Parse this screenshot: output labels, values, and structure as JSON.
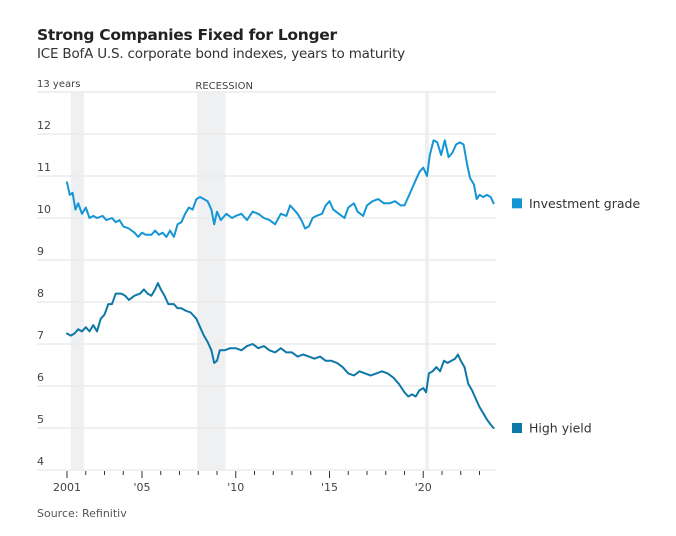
{
  "header": {
    "title": "Strong Companies Fixed for Longer",
    "subtitle": "ICE BofA U.S. corporate bond indexes, years to maturity"
  },
  "footer": {
    "source": "Source: Refinitiv"
  },
  "chart_data": {
    "type": "line",
    "title": "Strong Companies Fixed for Longer",
    "subtitle": "ICE BofA U.S. corporate bond indexes, years to maturity",
    "xlabel": "",
    "ylabel": "years",
    "xlim": [
      2001,
      2024
    ],
    "ylim": [
      4,
      13
    ],
    "yticks": [
      4,
      5,
      6,
      7,
      8,
      9,
      10,
      11,
      12,
      13
    ],
    "ytick_labels": [
      "4",
      "5",
      "6",
      "7",
      "8",
      "9",
      "10",
      "11",
      "12",
      "13 years"
    ],
    "xticks": [
      2001,
      2005,
      2010,
      2015,
      2020
    ],
    "xtick_labels": [
      "2001",
      "'05",
      "'10",
      "'15",
      "'20"
    ],
    "minor_xticks": [
      2002,
      2003,
      2004,
      2006,
      2007,
      2008,
      2009,
      2011,
      2012,
      2013,
      2014,
      2016,
      2017,
      2018,
      2019,
      2021,
      2022,
      2023
    ],
    "grid": true,
    "legend": "right",
    "annotations": [
      {
        "text": "RECESSION",
        "x": 2007.9
      }
    ],
    "recessions": [
      {
        "start": 2001.2,
        "end": 2001.9
      },
      {
        "start": 2007.95,
        "end": 2009.45
      },
      {
        "start": 2020.1,
        "end": 2020.3
      }
    ],
    "series": [
      {
        "name": "Investment grade",
        "color": "#1596d4",
        "points": [
          [
            2001.0,
            10.85
          ],
          [
            2001.15,
            10.55
          ],
          [
            2001.3,
            10.6
          ],
          [
            2001.45,
            10.2
          ],
          [
            2001.6,
            10.35
          ],
          [
            2001.8,
            10.1
          ],
          [
            2002.0,
            10.25
          ],
          [
            2002.2,
            10.0
          ],
          [
            2002.4,
            10.05
          ],
          [
            2002.6,
            10.0
          ],
          [
            2002.9,
            10.05
          ],
          [
            2003.1,
            9.95
          ],
          [
            2003.4,
            10.0
          ],
          [
            2003.6,
            9.9
          ],
          [
            2003.8,
            9.95
          ],
          [
            2004.0,
            9.8
          ],
          [
            2004.3,
            9.75
          ],
          [
            2004.6,
            9.65
          ],
          [
            2004.8,
            9.55
          ],
          [
            2005.0,
            9.65
          ],
          [
            2005.2,
            9.6
          ],
          [
            2005.5,
            9.6
          ],
          [
            2005.7,
            9.7
          ],
          [
            2005.9,
            9.6
          ],
          [
            2006.1,
            9.65
          ],
          [
            2006.3,
            9.55
          ],
          [
            2006.5,
            9.7
          ],
          [
            2006.7,
            9.55
          ],
          [
            2006.9,
            9.85
          ],
          [
            2007.1,
            9.9
          ],
          [
            2007.3,
            10.1
          ],
          [
            2007.5,
            10.25
          ],
          [
            2007.7,
            10.2
          ],
          [
            2007.9,
            10.45
          ],
          [
            2008.1,
            10.5
          ],
          [
            2008.3,
            10.45
          ],
          [
            2008.5,
            10.4
          ],
          [
            2008.7,
            10.2
          ],
          [
            2008.85,
            9.85
          ],
          [
            2009.0,
            10.15
          ],
          [
            2009.2,
            9.95
          ],
          [
            2009.5,
            10.1
          ],
          [
            2009.8,
            10.0
          ],
          [
            2010.0,
            10.05
          ],
          [
            2010.3,
            10.1
          ],
          [
            2010.6,
            9.95
          ],
          [
            2010.9,
            10.15
          ],
          [
            2011.2,
            10.1
          ],
          [
            2011.5,
            10.0
          ],
          [
            2011.8,
            9.95
          ],
          [
            2012.1,
            9.85
          ],
          [
            2012.4,
            10.1
          ],
          [
            2012.7,
            10.05
          ],
          [
            2012.9,
            10.3
          ],
          [
            2013.1,
            10.2
          ],
          [
            2013.3,
            10.1
          ],
          [
            2013.5,
            9.95
          ],
          [
            2013.7,
            9.75
          ],
          [
            2013.9,
            9.8
          ],
          [
            2014.1,
            10.0
          ],
          [
            2014.3,
            10.05
          ],
          [
            2014.6,
            10.1
          ],
          [
            2014.8,
            10.3
          ],
          [
            2015.0,
            10.4
          ],
          [
            2015.2,
            10.2
          ],
          [
            2015.5,
            10.1
          ],
          [
            2015.8,
            10.0
          ],
          [
            2016.0,
            10.25
          ],
          [
            2016.3,
            10.35
          ],
          [
            2016.5,
            10.15
          ],
          [
            2016.8,
            10.05
          ],
          [
            2017.0,
            10.3
          ],
          [
            2017.3,
            10.4
          ],
          [
            2017.6,
            10.45
          ],
          [
            2017.9,
            10.35
          ],
          [
            2018.2,
            10.35
          ],
          [
            2018.5,
            10.4
          ],
          [
            2018.8,
            10.3
          ],
          [
            2019.0,
            10.3
          ],
          [
            2019.2,
            10.5
          ],
          [
            2019.4,
            10.7
          ],
          [
            2019.6,
            10.9
          ],
          [
            2019.8,
            11.1
          ],
          [
            2020.0,
            11.2
          ],
          [
            2020.2,
            11.0
          ],
          [
            2020.35,
            11.5
          ],
          [
            2020.55,
            11.85
          ],
          [
            2020.75,
            11.8
          ],
          [
            2020.95,
            11.5
          ],
          [
            2021.15,
            11.85
          ],
          [
            2021.35,
            11.45
          ],
          [
            2021.55,
            11.55
          ],
          [
            2021.75,
            11.75
          ],
          [
            2021.95,
            11.8
          ],
          [
            2022.15,
            11.75
          ],
          [
            2022.35,
            11.25
          ],
          [
            2022.5,
            10.95
          ],
          [
            2022.7,
            10.8
          ],
          [
            2022.85,
            10.45
          ],
          [
            2023.0,
            10.55
          ],
          [
            2023.2,
            10.5
          ],
          [
            2023.4,
            10.55
          ],
          [
            2023.6,
            10.5
          ],
          [
            2023.75,
            10.35
          ]
        ]
      },
      {
        "name": "High yield",
        "color": "#0e78a8",
        "points": [
          [
            2001.0,
            7.25
          ],
          [
            2001.2,
            7.2
          ],
          [
            2001.4,
            7.25
          ],
          [
            2001.6,
            7.35
          ],
          [
            2001.8,
            7.3
          ],
          [
            2002.0,
            7.4
          ],
          [
            2002.2,
            7.3
          ],
          [
            2002.4,
            7.45
          ],
          [
            2002.6,
            7.3
          ],
          [
            2002.8,
            7.6
          ],
          [
            2003.0,
            7.7
          ],
          [
            2003.2,
            7.95
          ],
          [
            2003.4,
            7.95
          ],
          [
            2003.6,
            8.2
          ],
          [
            2003.9,
            8.2
          ],
          [
            2004.1,
            8.15
          ],
          [
            2004.3,
            8.05
          ],
          [
            2004.6,
            8.15
          ],
          [
            2004.9,
            8.2
          ],
          [
            2005.1,
            8.3
          ],
          [
            2005.3,
            8.2
          ],
          [
            2005.5,
            8.15
          ],
          [
            2005.7,
            8.3
          ],
          [
            2005.85,
            8.45
          ],
          [
            2006.0,
            8.3
          ],
          [
            2006.2,
            8.15
          ],
          [
            2006.4,
            7.95
          ],
          [
            2006.7,
            7.95
          ],
          [
            2006.9,
            7.85
          ],
          [
            2007.1,
            7.85
          ],
          [
            2007.3,
            7.8
          ],
          [
            2007.6,
            7.75
          ],
          [
            2007.9,
            7.6
          ],
          [
            2008.1,
            7.4
          ],
          [
            2008.3,
            7.2
          ],
          [
            2008.5,
            7.05
          ],
          [
            2008.7,
            6.85
          ],
          [
            2008.85,
            6.55
          ],
          [
            2009.0,
            6.6
          ],
          [
            2009.15,
            6.85
          ],
          [
            2009.4,
            6.85
          ],
          [
            2009.7,
            6.9
          ],
          [
            2010.0,
            6.9
          ],
          [
            2010.3,
            6.85
          ],
          [
            2010.6,
            6.95
          ],
          [
            2010.9,
            7.0
          ],
          [
            2011.2,
            6.9
          ],
          [
            2011.5,
            6.95
          ],
          [
            2011.8,
            6.85
          ],
          [
            2012.1,
            6.8
          ],
          [
            2012.4,
            6.9
          ],
          [
            2012.7,
            6.8
          ],
          [
            2013.0,
            6.8
          ],
          [
            2013.3,
            6.7
          ],
          [
            2013.6,
            6.75
          ],
          [
            2013.9,
            6.7
          ],
          [
            2014.2,
            6.65
          ],
          [
            2014.5,
            6.7
          ],
          [
            2014.8,
            6.6
          ],
          [
            2015.1,
            6.6
          ],
          [
            2015.4,
            6.55
          ],
          [
            2015.7,
            6.45
          ],
          [
            2016.0,
            6.3
          ],
          [
            2016.3,
            6.25
          ],
          [
            2016.6,
            6.35
          ],
          [
            2016.9,
            6.3
          ],
          [
            2017.2,
            6.25
          ],
          [
            2017.5,
            6.3
          ],
          [
            2017.8,
            6.35
          ],
          [
            2018.1,
            6.3
          ],
          [
            2018.4,
            6.2
          ],
          [
            2018.7,
            6.05
          ],
          [
            2019.0,
            5.85
          ],
          [
            2019.2,
            5.75
          ],
          [
            2019.4,
            5.8
          ],
          [
            2019.6,
            5.75
          ],
          [
            2019.8,
            5.9
          ],
          [
            2020.0,
            5.95
          ],
          [
            2020.15,
            5.85
          ],
          [
            2020.3,
            6.3
          ],
          [
            2020.5,
            6.35
          ],
          [
            2020.7,
            6.45
          ],
          [
            2020.9,
            6.35
          ],
          [
            2021.1,
            6.6
          ],
          [
            2021.3,
            6.55
          ],
          [
            2021.5,
            6.6
          ],
          [
            2021.7,
            6.65
          ],
          [
            2021.85,
            6.75
          ],
          [
            2022.0,
            6.6
          ],
          [
            2022.2,
            6.45
          ],
          [
            2022.4,
            6.05
          ],
          [
            2022.6,
            5.9
          ],
          [
            2022.8,
            5.7
          ],
          [
            2023.0,
            5.5
          ],
          [
            2023.2,
            5.35
          ],
          [
            2023.4,
            5.2
          ],
          [
            2023.6,
            5.08
          ],
          [
            2023.75,
            5.0
          ]
        ]
      }
    ]
  }
}
